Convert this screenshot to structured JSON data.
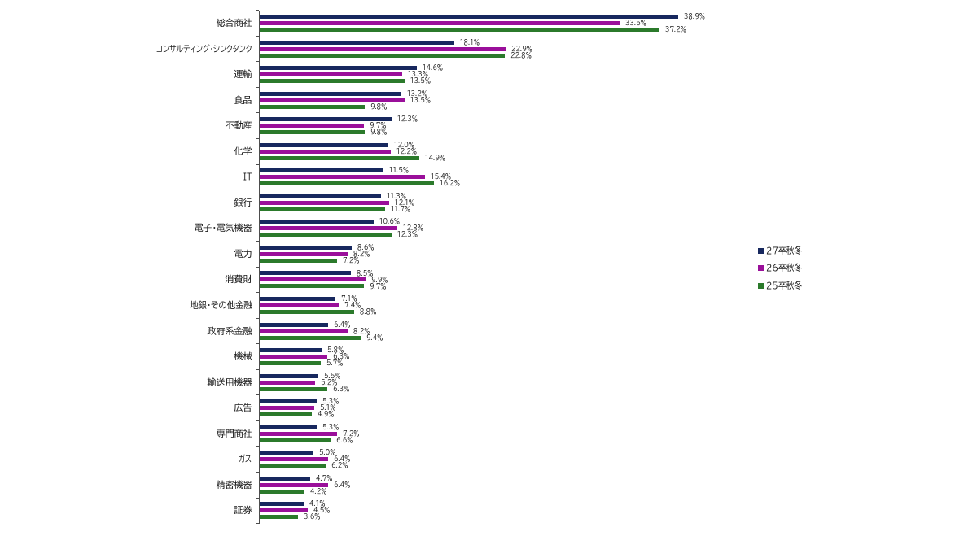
{
  "chart_data": {
    "type": "bar",
    "orientation": "horizontal",
    "categories": [
      "総合商社",
      "コンサルティング・シンクタンク",
      "運輸",
      "食品",
      "不動産",
      "化学",
      "IT",
      "銀行",
      "電子・電気機器",
      "電力",
      "消費財",
      "地銀・その他金融",
      "政府系金融",
      "機械",
      "輸送用機器",
      "広告",
      "専門商社",
      "ガス",
      "精密機器",
      "証券"
    ],
    "series": [
      {
        "name": "27卒秋冬",
        "color": "#17285E",
        "values": [
          38.9,
          18.1,
          14.6,
          13.2,
          12.3,
          12.0,
          11.5,
          11.3,
          10.6,
          8.6,
          8.5,
          7.1,
          6.4,
          5.8,
          5.5,
          5.3,
          5.3,
          5.0,
          4.7,
          4.1
        ]
      },
      {
        "name": "26卒秋冬",
        "color": "#9A0F9A",
        "values": [
          33.5,
          22.9,
          13.3,
          13.5,
          9.7,
          12.2,
          15.4,
          12.1,
          12.8,
          8.2,
          9.9,
          7.4,
          8.2,
          6.3,
          5.2,
          5.1,
          7.2,
          6.4,
          6.4,
          4.5
        ]
      },
      {
        "name": "25卒秋冬",
        "color": "#2B7A2B",
        "values": [
          37.2,
          22.8,
          13.5,
          9.8,
          9.8,
          14.9,
          16.2,
          11.7,
          12.3,
          7.2,
          9.7,
          8.8,
          9.4,
          5.7,
          6.3,
          4.9,
          6.6,
          6.2,
          4.2,
          3.6
        ]
      }
    ],
    "value_label_format": "{value}%",
    "title": "",
    "xlabel": "",
    "ylabel": "",
    "xlim": [
      0,
      45
    ],
    "grid": false,
    "legend_position": "right",
    "axis_color": "#4d4d4d",
    "label_color": "#1a1a1a",
    "background_color": "#ffffff"
  },
  "legend": {
    "items": [
      {
        "label": "27卒秋冬",
        "color": "#17285E"
      },
      {
        "label": "26卒秋冬",
        "color": "#9A0F9A"
      },
      {
        "label": "25卒秋冬",
        "color": "#2B7A2B"
      }
    ]
  }
}
